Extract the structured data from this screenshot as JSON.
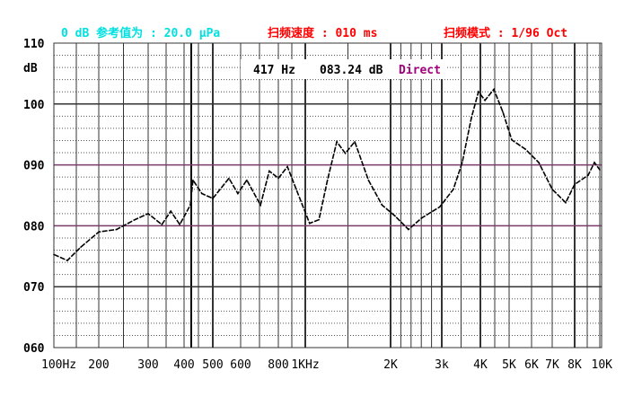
{
  "header": {
    "reference": "0 dB 参考值为 : 20.0 μPa",
    "sweep_speed": "扫频速度 : 010 ms",
    "sweep_mode": "扫频模式 : 1/96 Oct",
    "reference_color": "#00e0e0",
    "sweep_color": "#ff0000"
  },
  "readout": {
    "frequency": "417 Hz",
    "level": "083.24 dB",
    "mode": "Direct",
    "mode_color": "#a0007a"
  },
  "chart_data": {
    "type": "line",
    "title": "",
    "xlabel": "",
    "ylabel": "dB",
    "xscale": "log",
    "xlim": [
      100,
      10000
    ],
    "ylim": [
      60,
      110
    ],
    "grid": true,
    "y_ticks": [
      "110",
      "100",
      "090",
      "080",
      "070",
      "060"
    ],
    "y_tick_values": [
      110,
      100,
      90,
      80,
      70,
      60
    ],
    "x_ticks": [
      "100Hz",
      "200",
      "300",
      "400",
      "500",
      "600",
      "800",
      "1KHz",
      "2K",
      "3k",
      "4K",
      "5K",
      "6K",
      "7K",
      "8K",
      "10K"
    ],
    "x_tick_values": [
      100,
      200,
      300,
      400,
      500,
      600,
      800,
      1000,
      2000,
      3000,
      4000,
      5000,
      6000,
      7000,
      8000,
      10000
    ],
    "series": [
      {
        "color": "#000000",
        "x": [
          100,
          130,
          160,
          200,
          236,
          273,
          300,
          338,
          363,
          388,
          422,
          431,
          462,
          500,
          558,
          590,
          633,
          705,
          752,
          800,
          867,
          933,
          1050,
          1160,
          1260,
          1370,
          1470,
          1580,
          1740,
          1900,
          2090,
          2350,
          2610,
          2960,
          3300,
          3530,
          3770,
          3950,
          4160,
          4470,
          4780,
          5120,
          5720,
          6350,
          7000,
          7600,
          8000,
          9070,
          9570,
          10000
        ],
        "y": [
          75.3,
          74.3,
          76.5,
          79.0,
          79.4,
          81.0,
          82.0,
          80.2,
          82.4,
          80.2,
          83.4,
          87.5,
          85.3,
          84.5,
          87.8,
          85.3,
          87.5,
          83.4,
          89.0,
          87.8,
          89.7,
          86.0,
          80.4,
          81.0,
          87.5,
          93.8,
          91.9,
          93.8,
          87.5,
          83.4,
          81.6,
          79.4,
          81.3,
          83.1,
          86.0,
          90.4,
          97.8,
          102.0,
          100.6,
          102.4,
          98.7,
          94.1,
          92.6,
          90.4,
          86.0,
          83.8,
          86.8,
          88.3,
          90.4,
          89.2
        ]
      }
    ]
  }
}
